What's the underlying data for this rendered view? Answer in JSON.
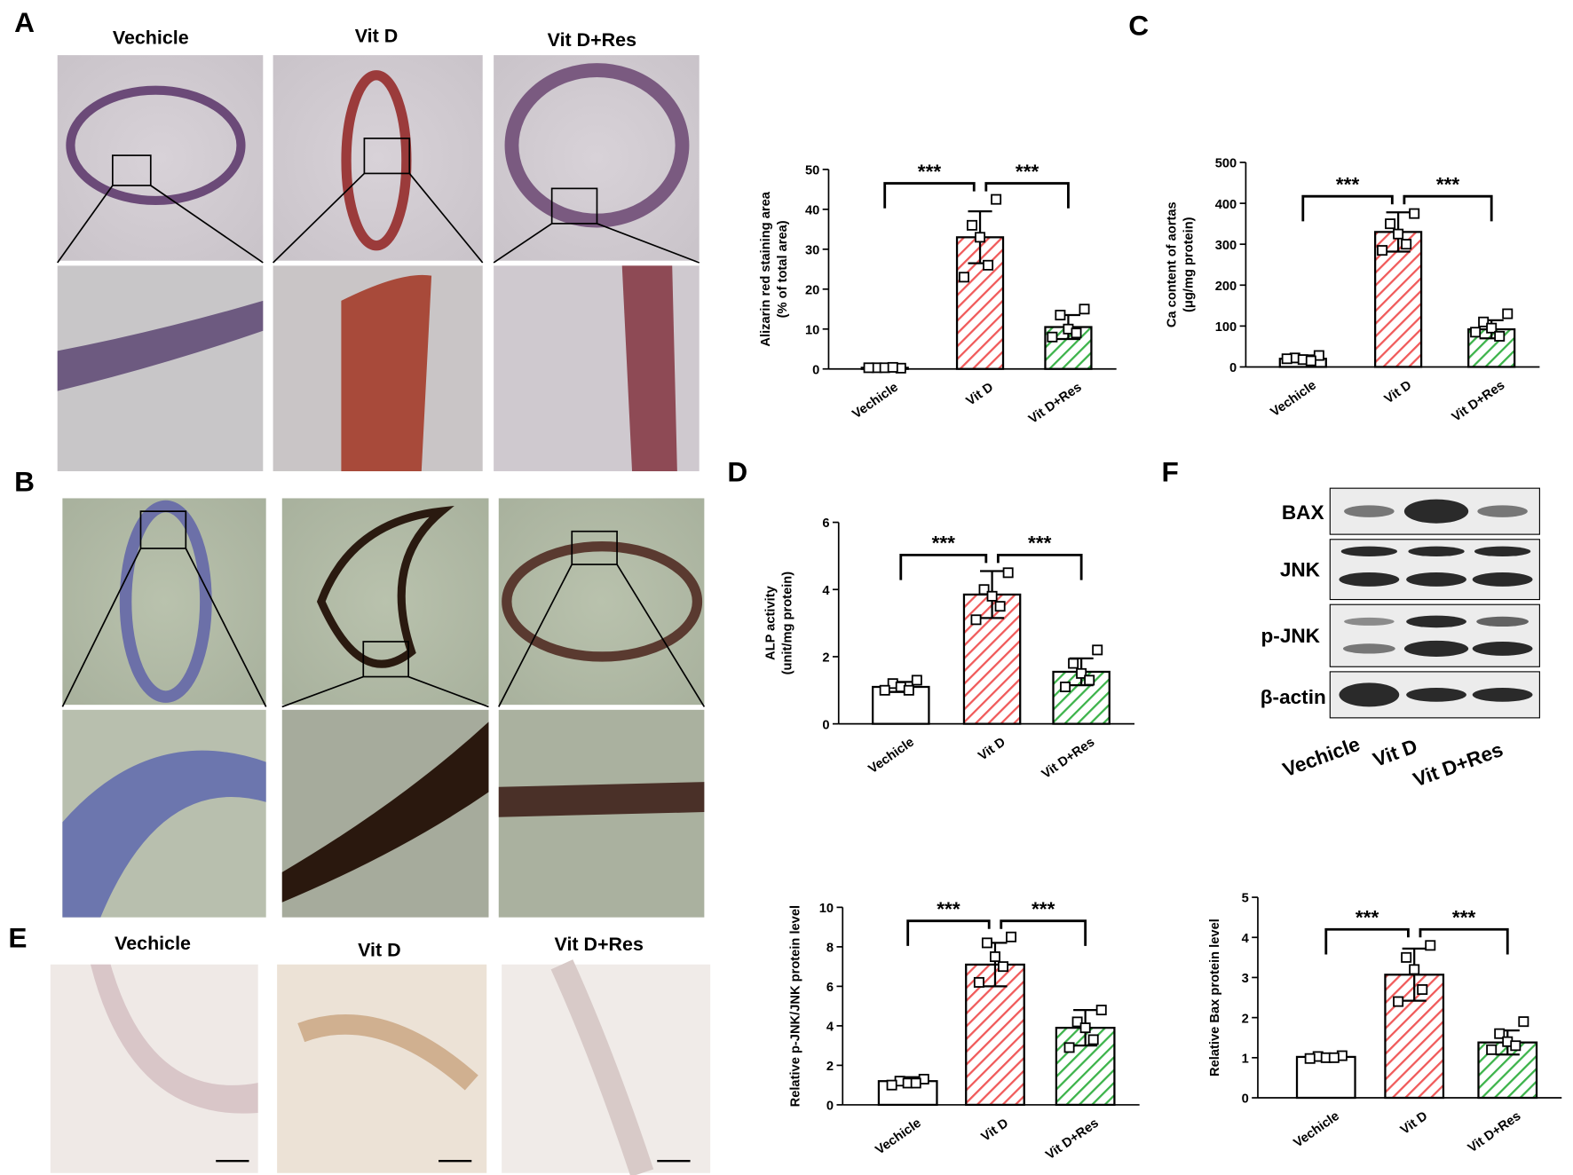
{
  "panels": {
    "letters": [
      "A",
      "B",
      "C",
      "D",
      "E",
      "F"
    ],
    "panel_a_titles": [
      "Vechicle",
      "Vit D",
      "Vit D+Res"
    ],
    "panel_e_titles": [
      "Vechicle",
      "Vit D",
      "Vit D+Res"
    ],
    "blot": {
      "rows": [
        "BAX",
        "JNK",
        "p-JNK",
        "β-actin"
      ],
      "lanes": [
        "Vechicle",
        "Vit D",
        "Vit D+Res"
      ]
    }
  },
  "chart_data": [
    {
      "type": "bar",
      "y_label": [
        "Alizarin red staining area",
        "(% of total area)"
      ],
      "categories": [
        "Vechicle",
        "Vit D",
        "Vit D+Res"
      ],
      "values": [
        0.3,
        33,
        10.5
      ],
      "errors": [
        0.2,
        6.5,
        3
      ],
      "points": [
        [
          0.2,
          0.3,
          0.3,
          0.4,
          0.3
        ],
        [
          42.5,
          36,
          33,
          26,
          23
        ],
        [
          15,
          13.5,
          10,
          9,
          8
        ]
      ],
      "colors": [
        "#000000",
        "#f05a5a",
        "#3cb34a"
      ],
      "ylim": [
        0,
        50
      ],
      "yticks": [
        0,
        10,
        20,
        30,
        40,
        50
      ],
      "significance": [
        "***",
        "***"
      ]
    },
    {
      "type": "bar",
      "y_label": [
        "Ca content of aortas",
        "(μg/mg protein)"
      ],
      "categories": [
        "Vechicle",
        "Vit D",
        "Vit D+Res"
      ],
      "values": [
        20,
        330,
        92
      ],
      "errors": [
        8,
        48,
        22
      ],
      "points": [
        [
          28,
          22,
          18,
          15,
          20
        ],
        [
          375,
          350,
          325,
          300,
          285
        ],
        [
          130,
          110,
          95,
          75,
          85
        ]
      ],
      "colors": [
        "#000000",
        "#f05a5a",
        "#3cb34a"
      ],
      "ylim": [
        0,
        500
      ],
      "yticks": [
        0,
        100,
        200,
        300,
        400,
        500
      ],
      "significance": [
        "***",
        "***"
      ]
    },
    {
      "type": "bar",
      "y_label": [
        "ALP activity",
        "(unit/mg protein)"
      ],
      "categories": [
        "Vechicle",
        "Vit D",
        "Vit D+Res"
      ],
      "values": [
        1.1,
        3.85,
        1.55
      ],
      "errors": [
        0.15,
        0.7,
        0.4
      ],
      "points": [
        [
          1.3,
          1.2,
          1.1,
          1.0,
          1.0
        ],
        [
          4.5,
          4.0,
          3.8,
          3.5,
          3.1
        ],
        [
          2.2,
          1.8,
          1.5,
          1.3,
          1.1
        ]
      ],
      "colors": [
        "#000000",
        "#f05a5a",
        "#3cb34a"
      ],
      "ylim": [
        0,
        6
      ],
      "yticks": [
        0,
        2,
        4,
        6
      ],
      "significance": [
        "***",
        "***"
      ]
    },
    {
      "type": "bar",
      "y_label": [
        "Relative p-JNK/JNK protein level"
      ],
      "categories": [
        "Vechicle",
        "Vit D",
        "Vit D+Res"
      ],
      "values": [
        1.2,
        7.1,
        3.9
      ],
      "errors": [
        0.2,
        1.1,
        0.9
      ],
      "points": [
        [
          1.3,
          1.2,
          1.1,
          1.1,
          1.0
        ],
        [
          8.5,
          8.2,
          7.5,
          7.0,
          6.2
        ],
        [
          4.8,
          4.2,
          3.9,
          3.3,
          2.9
        ]
      ],
      "colors": [
        "#000000",
        "#f05a5a",
        "#3cb34a"
      ],
      "ylim": [
        0,
        10
      ],
      "yticks": [
        0,
        2,
        4,
        6,
        8,
        10
      ],
      "significance": [
        "***",
        "***"
      ]
    },
    {
      "type": "bar",
      "y_label": [
        "Relative Bax protein level"
      ],
      "categories": [
        "Vechicle",
        "Vit D",
        "Vit D+Res"
      ],
      "values": [
        1.02,
        3.07,
        1.38
      ],
      "errors": [
        0.05,
        0.65,
        0.3
      ],
      "points": [
        [
          1.05,
          1.03,
          1.0,
          1.0,
          0.98
        ],
        [
          3.8,
          3.5,
          3.2,
          2.7,
          2.4
        ],
        [
          1.9,
          1.6,
          1.4,
          1.3,
          1.2
        ]
      ],
      "colors": [
        "#000000",
        "#f05a5a",
        "#3cb34a"
      ],
      "ylim": [
        0,
        5
      ],
      "yticks": [
        0,
        1,
        2,
        3,
        4,
        5
      ],
      "significance": [
        "***",
        "***"
      ]
    }
  ]
}
